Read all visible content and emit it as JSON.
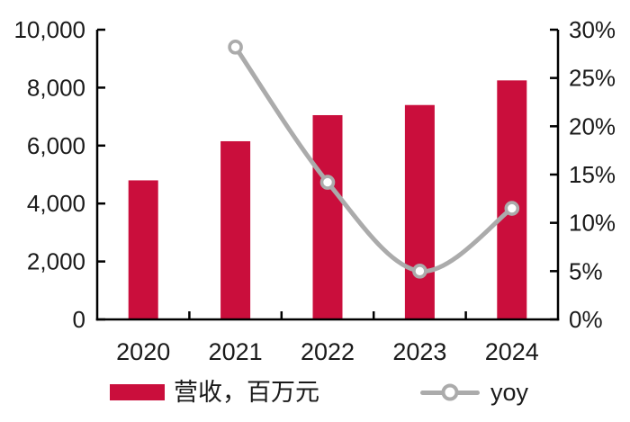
{
  "chart_data": {
    "type": "bar",
    "combo": "bar-line",
    "categories": [
      "2020",
      "2021",
      "2022",
      "2023",
      "2024"
    ],
    "series": [
      {
        "name": "营收，百万元",
        "type": "bar",
        "axis": "left",
        "color": "#CA0E3C",
        "values": [
          4800,
          6150,
          7050,
          7400,
          8250
        ]
      },
      {
        "name": "yoy",
        "type": "line",
        "axis": "right",
        "color": "#ABABAB",
        "marker_fill": "#FFFFFF",
        "values": [
          null,
          28.2,
          14.2,
          5.0,
          11.5
        ]
      }
    ],
    "left_axis": {
      "min": 0,
      "max": 10000,
      "step": 2000,
      "tick_labels": [
        "0",
        "2,000",
        "4,000",
        "6,000",
        "8,000",
        "10,000"
      ]
    },
    "right_axis": {
      "min": 0,
      "max": 30,
      "step": 5,
      "tick_labels": [
        "0%",
        "5%",
        "10%",
        "15%",
        "20%",
        "25%",
        "30%"
      ]
    },
    "x_tick_labels": [
      "2020",
      "2021",
      "2022",
      "2023",
      "2024"
    ],
    "legend": {
      "position": "bottom",
      "entries": [
        "营收，百万元",
        "yoy"
      ]
    },
    "grid": false,
    "axis_color": "#000000",
    "text_color": "#1A1A1A"
  }
}
